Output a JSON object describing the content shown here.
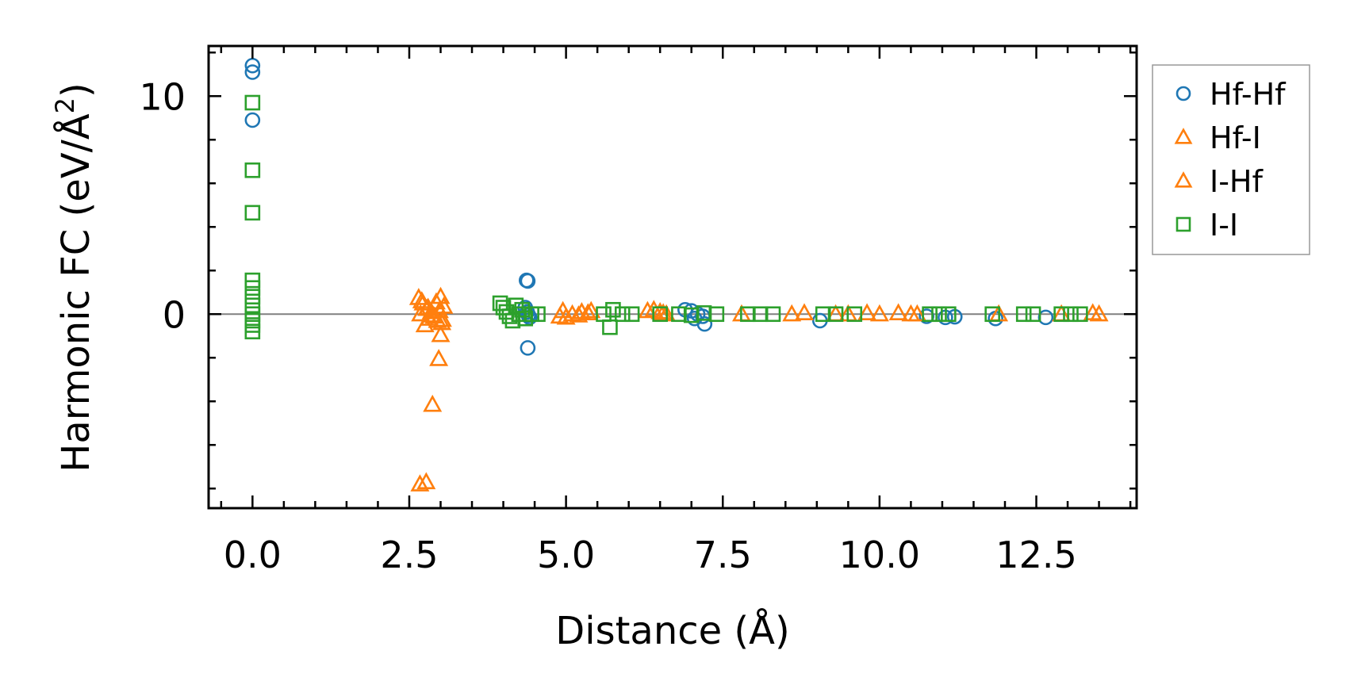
{
  "chart_data": {
    "type": "scatter",
    "title": "",
    "xlabel": "Distance (Å)",
    "ylabel_main": "Harmonic FC (eV/Å",
    "ylabel_sup": "2",
    "ylabel_close": ")",
    "xlim": [
      -0.7,
      14.1
    ],
    "ylim": [
      -8.9,
      12.3
    ],
    "x_ticks": [
      0.0,
      2.5,
      5.0,
      7.5,
      10.0,
      12.5
    ],
    "x_tick_labels": [
      "0.0",
      "2.5",
      "5.0",
      "7.5",
      "10.0",
      "12.5"
    ],
    "y_ticks": [
      0,
      10
    ],
    "y_tick_labels": [
      "0",
      "10"
    ],
    "x_minor_step": 0.5,
    "y_minor_step": 2,
    "zero_line": true,
    "legend_position": "outside-right-top",
    "series": [
      {
        "name": "Hf-Hf",
        "marker": "circle",
        "color": "#1f77b4",
        "points": [
          [
            0.0,
            11.4
          ],
          [
            0.0,
            11.1
          ],
          [
            0.0,
            8.9
          ],
          [
            4.37,
            1.55
          ],
          [
            4.39,
            1.52
          ],
          [
            4.35,
            0.3
          ],
          [
            4.38,
            0.1
          ],
          [
            4.4,
            -0.05
          ],
          [
            4.42,
            -0.15
          ],
          [
            4.39,
            -1.55
          ],
          [
            6.9,
            0.2
          ],
          [
            7.0,
            0.15
          ],
          [
            7.1,
            0.0
          ],
          [
            7.18,
            -0.1
          ],
          [
            7.21,
            -0.45
          ],
          [
            7.05,
            -0.2
          ],
          [
            9.05,
            -0.3
          ],
          [
            10.75,
            -0.1
          ],
          [
            11.05,
            -0.15
          ],
          [
            11.2,
            -0.12
          ],
          [
            11.85,
            -0.2
          ],
          [
            12.65,
            -0.15
          ]
        ]
      },
      {
        "name": "Hf-I",
        "marker": "triangle",
        "color": "#ff7f0e",
        "points": [
          [
            2.67,
            -7.8
          ],
          [
            2.77,
            -7.7
          ],
          [
            2.87,
            -4.15
          ],
          [
            2.97,
            -2.05
          ],
          [
            3.0,
            -0.95
          ],
          [
            2.65,
            0.75
          ],
          [
            2.72,
            0.5
          ],
          [
            2.8,
            0.3
          ],
          [
            2.85,
            0.1
          ],
          [
            2.9,
            -0.1
          ],
          [
            2.95,
            -0.3
          ],
          [
            3.0,
            0.8
          ],
          [
            3.05,
            0.35
          ],
          [
            2.75,
            -0.5
          ],
          [
            2.82,
            -0.2
          ],
          [
            2.68,
            0.0
          ],
          [
            3.02,
            -0.4
          ],
          [
            4.95,
            0.15
          ],
          [
            5.0,
            -0.15
          ],
          [
            5.1,
            0.0
          ],
          [
            5.25,
            0.1
          ],
          [
            5.4,
            0.15
          ],
          [
            6.4,
            0.2
          ],
          [
            6.5,
            0.1
          ],
          [
            6.6,
            0.0
          ],
          [
            8.6,
            0.0
          ],
          [
            8.8,
            0.05
          ],
          [
            9.5,
            0.0
          ],
          [
            9.8,
            0.05
          ],
          [
            10.0,
            0.0
          ],
          [
            10.3,
            0.05
          ],
          [
            10.5,
            0.0
          ],
          [
            11.9,
            0.0
          ],
          [
            13.4,
            0.05
          ],
          [
            13.5,
            0.0
          ]
        ]
      },
      {
        "name": "I-Hf",
        "marker": "triangle",
        "color": "#ff7f0e",
        "points": [
          [
            2.7,
            0.6
          ],
          [
            2.78,
            0.25
          ],
          [
            2.88,
            -0.05
          ],
          [
            2.93,
            0.55
          ],
          [
            2.98,
            0.15
          ],
          [
            3.03,
            -0.25
          ],
          [
            4.9,
            -0.1
          ],
          [
            5.2,
            -0.05
          ],
          [
            5.35,
            0.05
          ],
          [
            6.3,
            0.15
          ],
          [
            6.55,
            0.05
          ],
          [
            7.8,
            0.0
          ],
          [
            9.3,
            0.0
          ],
          [
            10.6,
            0.0
          ],
          [
            12.9,
            0.0
          ]
        ]
      },
      {
        "name": "I-I",
        "marker": "square",
        "color": "#2ca02c",
        "points": [
          [
            0.0,
            9.7
          ],
          [
            0.0,
            6.6
          ],
          [
            0.0,
            4.65
          ],
          [
            0.0,
            1.55
          ],
          [
            0.0,
            1.2
          ],
          [
            0.0,
            0.8
          ],
          [
            0.0,
            0.4
          ],
          [
            0.0,
            0.0
          ],
          [
            0.0,
            -0.3
          ],
          [
            0.0,
            -0.5
          ],
          [
            0.0,
            -0.8
          ],
          [
            3.95,
            0.5
          ],
          [
            4.0,
            0.3
          ],
          [
            4.05,
            0.1
          ],
          [
            4.1,
            -0.1
          ],
          [
            4.15,
            -0.3
          ],
          [
            4.2,
            0.4
          ],
          [
            4.25,
            0.0
          ],
          [
            4.3,
            0.2
          ],
          [
            4.35,
            -0.2
          ],
          [
            4.45,
            0.0
          ],
          [
            4.55,
            0.0
          ],
          [
            5.6,
            0.0
          ],
          [
            5.7,
            -0.6
          ],
          [
            5.75,
            0.2
          ],
          [
            5.9,
            0.0
          ],
          [
            6.05,
            0.0
          ],
          [
            6.5,
            0.0
          ],
          [
            6.8,
            0.0
          ],
          [
            7.0,
            -0.05
          ],
          [
            7.2,
            0.05
          ],
          [
            7.4,
            0.0
          ],
          [
            7.9,
            0.0
          ],
          [
            8.1,
            0.0
          ],
          [
            8.3,
            0.0
          ],
          [
            9.1,
            0.0
          ],
          [
            9.3,
            0.0
          ],
          [
            9.6,
            0.0
          ],
          [
            10.8,
            0.0
          ],
          [
            10.95,
            0.0
          ],
          [
            11.1,
            0.0
          ],
          [
            11.8,
            0.0
          ],
          [
            12.3,
            0.0
          ],
          [
            12.45,
            0.0
          ],
          [
            12.9,
            0.0
          ],
          [
            13.05,
            0.0
          ],
          [
            13.2,
            0.0
          ]
        ]
      }
    ]
  }
}
